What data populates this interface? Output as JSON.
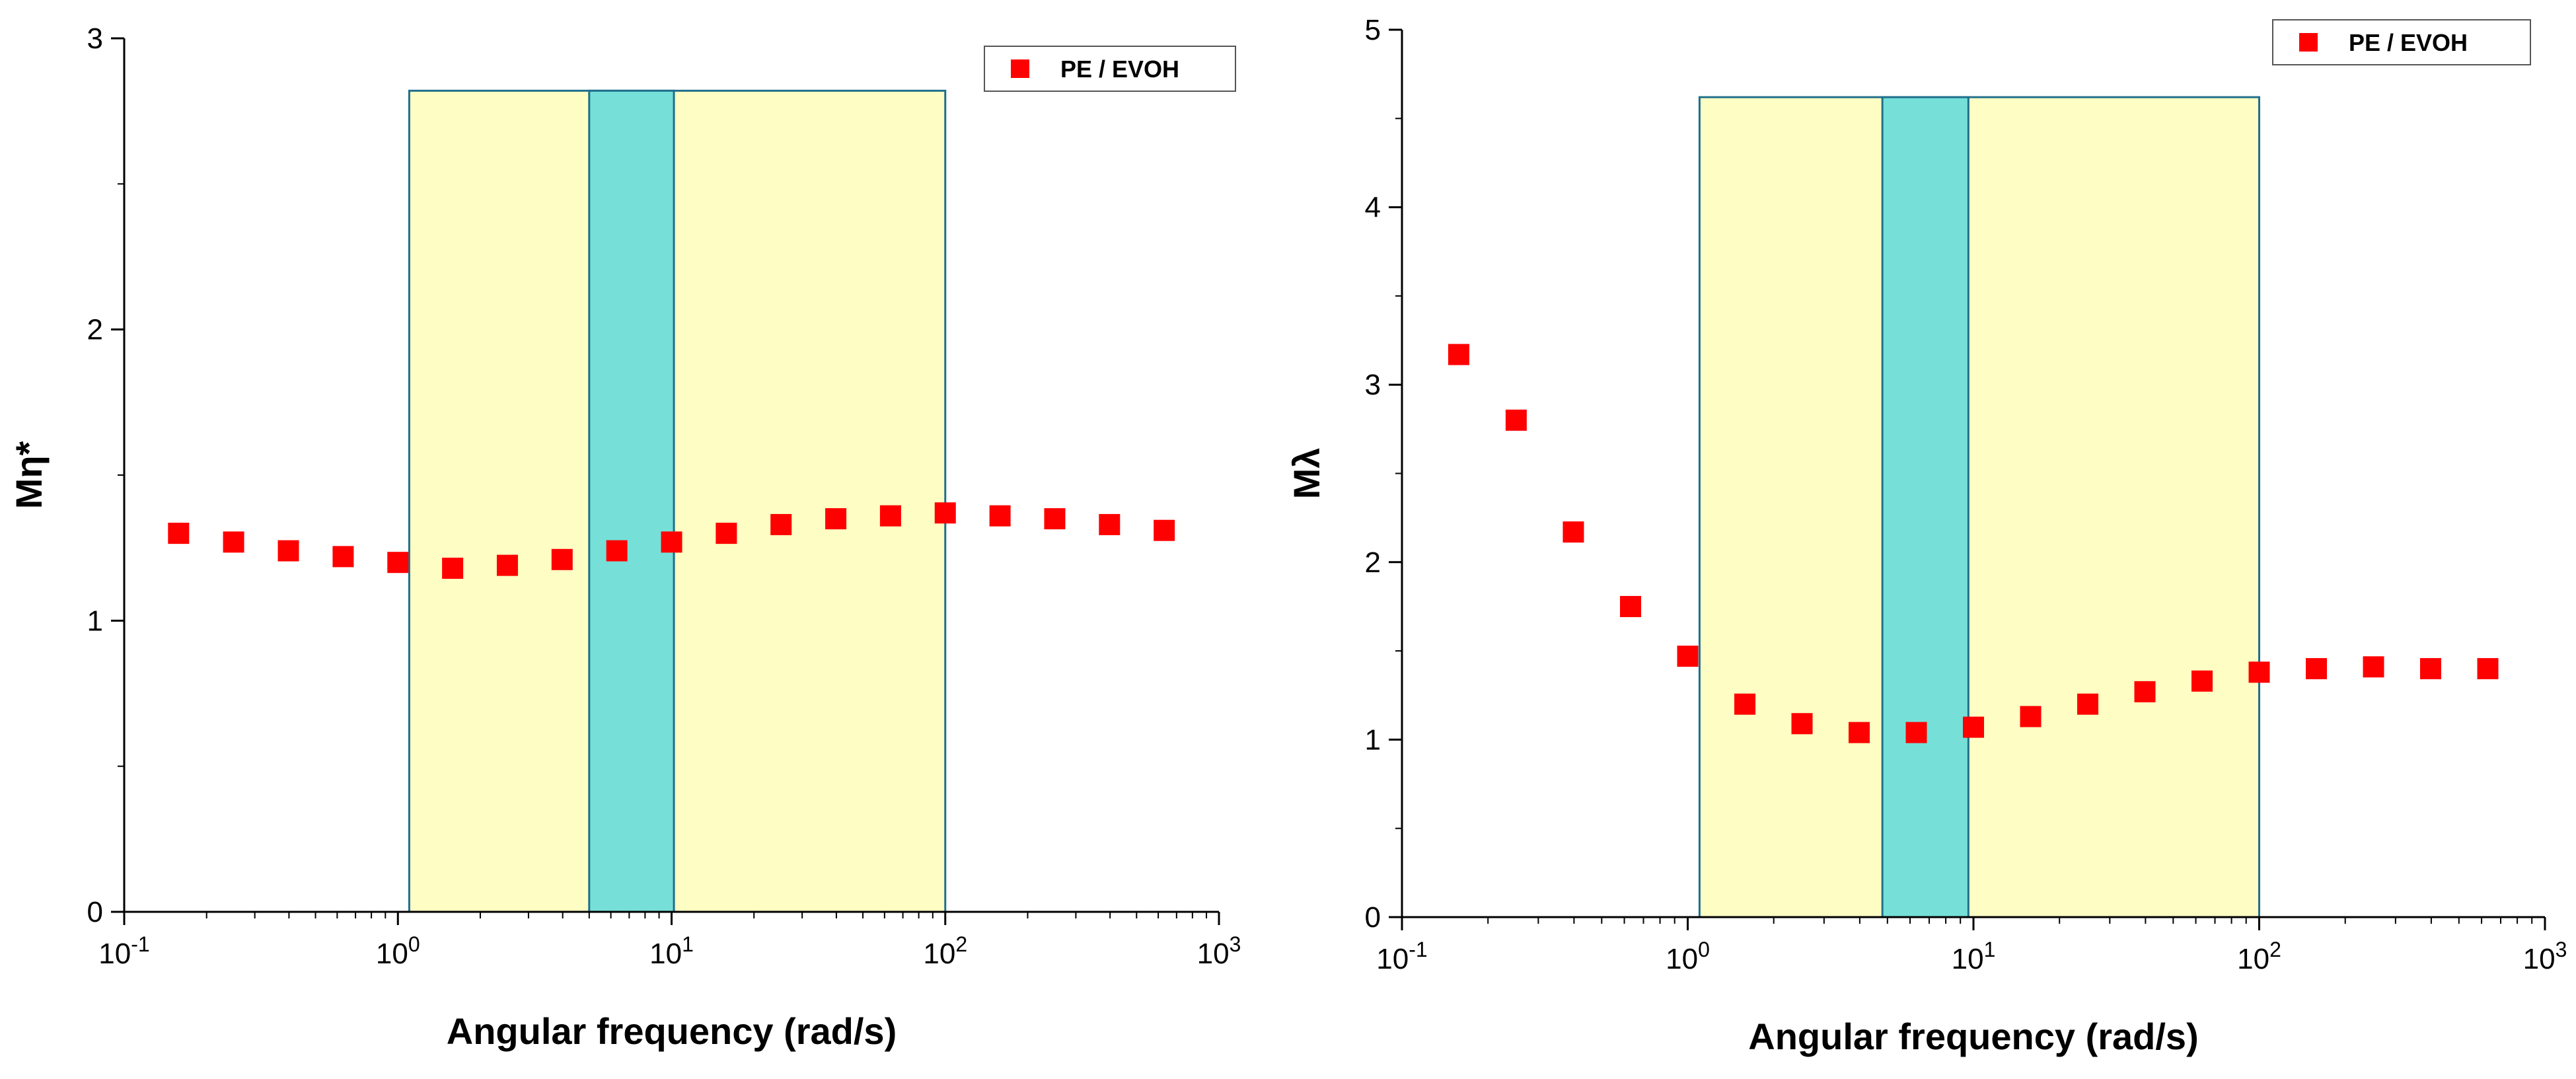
{
  "chart_data": [
    {
      "type": "scatter",
      "x_scale": "log",
      "xlim": [
        0.1,
        1000
      ],
      "ylim": [
        0,
        3
      ],
      "xlabel": "Angular frequency (rad/s)",
      "ylabel": "Mη*",
      "x_ticks": [
        0.1,
        1,
        10,
        100,
        1000
      ],
      "x_tick_labels": [
        {
          "base": "10",
          "exp": "-1"
        },
        {
          "base": "10",
          "exp": "0"
        },
        {
          "base": "10",
          "exp": "1"
        },
        {
          "base": "10",
          "exp": "2"
        },
        {
          "base": "10",
          "exp": "3"
        }
      ],
      "y_ticks": [
        0,
        1,
        2,
        3
      ],
      "y_tick_labels": [
        "0",
        "1",
        "2",
        "3"
      ],
      "legend": {
        "entries": [
          "PE / EVOH"
        ],
        "position": "top-right"
      },
      "shaded_regions": [
        {
          "x_start": 1.1,
          "x_end": 100,
          "y_top": 2.82,
          "color": "#fdfdc4",
          "border": "#1f6f8b"
        },
        {
          "x_start": 5.0,
          "x_end": 10.2,
          "y_top": 2.82,
          "color": "#76e0d8",
          "border": "#1f6f8b"
        }
      ],
      "series": [
        {
          "name": "PE / EVOH",
          "color": "#ff0000",
          "marker": "square",
          "x": [
            0.158,
            0.251,
            0.398,
            0.631,
            1.0,
            1.585,
            2.512,
            3.981,
            6.31,
            10.0,
            15.85,
            25.12,
            39.81,
            63.1,
            100,
            158.5,
            251.2,
            398.1,
            631
          ],
          "y": [
            1.3,
            1.27,
            1.24,
            1.22,
            1.2,
            1.18,
            1.19,
            1.21,
            1.24,
            1.27,
            1.3,
            1.33,
            1.35,
            1.36,
            1.37,
            1.36,
            1.35,
            1.33,
            1.31
          ]
        }
      ]
    },
    {
      "type": "scatter",
      "x_scale": "log",
      "xlim": [
        0.1,
        1000
      ],
      "ylim": [
        0,
        5
      ],
      "xlabel": "Angular frequency (rad/s)",
      "ylabel": "Mλ",
      "x_ticks": [
        0.1,
        1,
        10,
        100,
        1000
      ],
      "x_tick_labels": [
        {
          "base": "10",
          "exp": "-1"
        },
        {
          "base": "10",
          "exp": "0"
        },
        {
          "base": "10",
          "exp": "1"
        },
        {
          "base": "10",
          "exp": "2"
        },
        {
          "base": "10",
          "exp": "3"
        }
      ],
      "y_ticks": [
        0,
        1,
        2,
        3,
        4,
        5
      ],
      "y_tick_labels": [
        "0",
        "1",
        "2",
        "3",
        "4",
        "5"
      ],
      "legend": {
        "entries": [
          "PE / EVOH"
        ],
        "position": "top-right"
      },
      "shaded_regions": [
        {
          "x_start": 1.1,
          "x_end": 100,
          "y_top": 4.62,
          "color": "#fdfdc4",
          "border": "#1f6f8b"
        },
        {
          "x_start": 4.8,
          "x_end": 9.6,
          "y_top": 4.62,
          "color": "#76e0d8",
          "border": "#1f6f8b"
        }
      ],
      "series": [
        {
          "name": "PE / EVOH",
          "color": "#ff0000",
          "marker": "square",
          "x": [
            0.158,
            0.251,
            0.398,
            0.631,
            1.0,
            1.585,
            2.512,
            3.981,
            6.31,
            10.0,
            15.85,
            25.12,
            39.81,
            63.1,
            100,
            158.5,
            251.2,
            398.1,
            631
          ],
          "y": [
            3.17,
            2.8,
            2.17,
            1.75,
            1.47,
            1.2,
            1.09,
            1.04,
            1.04,
            1.07,
            1.13,
            1.2,
            1.27,
            1.33,
            1.38,
            1.4,
            1.41,
            1.4,
            1.4
          ]
        }
      ]
    }
  ]
}
